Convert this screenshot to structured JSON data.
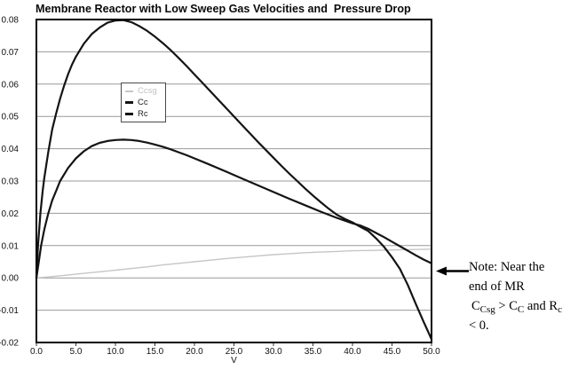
{
  "chart_data": {
    "type": "line",
    "title": "Membrane Reactor with Low Sweep Gas Velocities and  Pressure Drop",
    "xlabel": "V",
    "ylabel": "",
    "xlim": [
      0,
      50
    ],
    "ylim": [
      -0.02,
      0.08
    ],
    "grid": true,
    "legend_position": "upper-left-inside",
    "x_ticks": [
      "0.0",
      "5.0",
      "10.0",
      "15.0",
      "20.0",
      "25.0",
      "30.0",
      "35.0",
      "40.0",
      "45.0",
      "50.0"
    ],
    "y_ticks": [
      "0.08",
      "0.07",
      "0.06",
      "0.05",
      "0.04",
      "0.03",
      "0.02",
      "0.01",
      "0.00",
      "-0.01",
      "-0.02"
    ],
    "series": [
      {
        "name": "Ccsg",
        "color": "#c6c6c6",
        "stroke_width": 1.4,
        "points": [
          [
            0,
            0
          ],
          [
            2,
            0.0004
          ],
          [
            4,
            0.0009
          ],
          [
            6,
            0.0014
          ],
          [
            8,
            0.0019
          ],
          [
            10,
            0.0024
          ],
          [
            12,
            0.0029
          ],
          [
            14,
            0.0034
          ],
          [
            16,
            0.004
          ],
          [
            18,
            0.0045
          ],
          [
            20,
            0.005
          ],
          [
            22,
            0.0055
          ],
          [
            24,
            0.006
          ],
          [
            26,
            0.0064
          ],
          [
            28,
            0.0068
          ],
          [
            30,
            0.0072
          ],
          [
            32,
            0.0075
          ],
          [
            34,
            0.0078
          ],
          [
            36,
            0.008
          ],
          [
            38,
            0.0082
          ],
          [
            40,
            0.0084
          ],
          [
            42,
            0.0085
          ],
          [
            44,
            0.0086
          ],
          [
            46,
            0.0087
          ],
          [
            48,
            0.0088
          ],
          [
            50,
            0.0089
          ]
        ]
      },
      {
        "name": "Cc",
        "color": "#141414",
        "stroke_width": 2.2,
        "points": [
          [
            0,
            0
          ],
          [
            0.3,
            0.005
          ],
          [
            0.6,
            0.01
          ],
          [
            1,
            0.015
          ],
          [
            1.5,
            0.02
          ],
          [
            2,
            0.024
          ],
          [
            2.5,
            0.027
          ],
          [
            3,
            0.03
          ],
          [
            4,
            0.034
          ],
          [
            5,
            0.037
          ],
          [
            6,
            0.0392
          ],
          [
            7,
            0.0408
          ],
          [
            8,
            0.0418
          ],
          [
            9,
            0.0424
          ],
          [
            10,
            0.0427
          ],
          [
            11,
            0.0428
          ],
          [
            12,
            0.0427
          ],
          [
            13,
            0.0424
          ],
          [
            14,
            0.0419
          ],
          [
            15,
            0.0413
          ],
          [
            16,
            0.0406
          ],
          [
            17,
            0.0398
          ],
          [
            18,
            0.0389
          ],
          [
            19,
            0.038
          ],
          [
            20,
            0.037
          ],
          [
            22,
            0.035
          ],
          [
            24,
            0.0329
          ],
          [
            26,
            0.0308
          ],
          [
            28,
            0.0287
          ],
          [
            30,
            0.0266
          ],
          [
            32,
            0.0245
          ],
          [
            34,
            0.0225
          ],
          [
            36,
            0.0205
          ],
          [
            38,
            0.0186
          ],
          [
            40,
            0.0169
          ],
          [
            41,
            0.0162
          ],
          [
            42,
            0.0152
          ],
          [
            43,
            0.0139
          ],
          [
            44,
            0.0126
          ],
          [
            45,
            0.0112
          ],
          [
            46,
            0.0098
          ],
          [
            47,
            0.0084
          ],
          [
            48,
            0.007
          ],
          [
            49,
            0.0057
          ],
          [
            50,
            0.0045
          ]
        ]
      },
      {
        "name": "Rc",
        "color": "#141414",
        "stroke_width": 2.2,
        "points": [
          [
            0,
            0
          ],
          [
            0.2,
            0.01
          ],
          [
            0.5,
            0.02
          ],
          [
            0.8,
            0.027
          ],
          [
            1,
            0.031
          ],
          [
            1.5,
            0.039
          ],
          [
            2,
            0.046
          ],
          [
            2.5,
            0.051
          ],
          [
            3,
            0.0555
          ],
          [
            3.5,
            0.0595
          ],
          [
            4,
            0.063
          ],
          [
            4.5,
            0.066
          ],
          [
            5,
            0.0685
          ],
          [
            6,
            0.0725
          ],
          [
            7,
            0.0755
          ],
          [
            8,
            0.0775
          ],
          [
            9,
            0.079
          ],
          [
            10,
            0.0797
          ],
          [
            11,
            0.0798
          ],
          [
            12,
            0.0792
          ],
          [
            13,
            0.078
          ],
          [
            14,
            0.0765
          ],
          [
            15,
            0.0747
          ],
          [
            16,
            0.0727
          ],
          [
            17,
            0.0705
          ],
          [
            18,
            0.0681
          ],
          [
            19,
            0.0656
          ],
          [
            20,
            0.063
          ],
          [
            21,
            0.0604
          ],
          [
            22,
            0.0578
          ],
          [
            23,
            0.0552
          ],
          [
            24,
            0.0526
          ],
          [
            25,
            0.05
          ],
          [
            26,
            0.0474
          ],
          [
            27,
            0.0448
          ],
          [
            28,
            0.0422
          ],
          [
            29,
            0.0397
          ],
          [
            30,
            0.0372
          ],
          [
            31,
            0.0347
          ],
          [
            32,
            0.0323
          ],
          [
            33,
            0.03
          ],
          [
            34,
            0.0277
          ],
          [
            35,
            0.0255
          ],
          [
            36,
            0.0234
          ],
          [
            37,
            0.0214
          ],
          [
            38,
            0.0196
          ],
          [
            39,
            0.0183
          ],
          [
            40,
            0.0172
          ],
          [
            41,
            0.0158
          ],
          [
            42,
            0.0145
          ],
          [
            43,
            0.0122
          ],
          [
            44,
            0.0096
          ],
          [
            45,
            0.0064
          ],
          [
            46,
            0.0028
          ],
          [
            47,
            -0.0022
          ],
          [
            48,
            -0.008
          ],
          [
            49,
            -0.0136
          ],
          [
            49.5,
            -0.0163
          ],
          [
            50,
            -0.019
          ]
        ]
      }
    ]
  },
  "legend": {
    "items": [
      {
        "label": "Ccsg",
        "color": "#c6c6c6",
        "text_color": "#c2c2c2"
      },
      {
        "label": "Cc",
        "color": "#141414",
        "text_color": "#222222"
      },
      {
        "label": "Rc",
        "color": "#141414",
        "text_color": "#222222"
      }
    ]
  },
  "note": {
    "arrow_icon": "left-arrow",
    "line1": "Note: Near the",
    "line2": "end of MR",
    "line3_runs": [
      {
        "t": "C"
      },
      {
        "t": "Csg",
        "sub": true
      },
      {
        "t": " > C"
      },
      {
        "t": "C",
        "sub": true
      },
      {
        "t": " and R"
      },
      {
        "t": "c",
        "sub": true
      }
    ],
    "line4": "< 0."
  },
  "colors": {
    "background": "#ffffff",
    "plot_border": "#000000",
    "gridline": "#999999",
    "tick_text": "#111111",
    "curve_dark": "#141414",
    "curve_light": "#c6c6c6"
  }
}
